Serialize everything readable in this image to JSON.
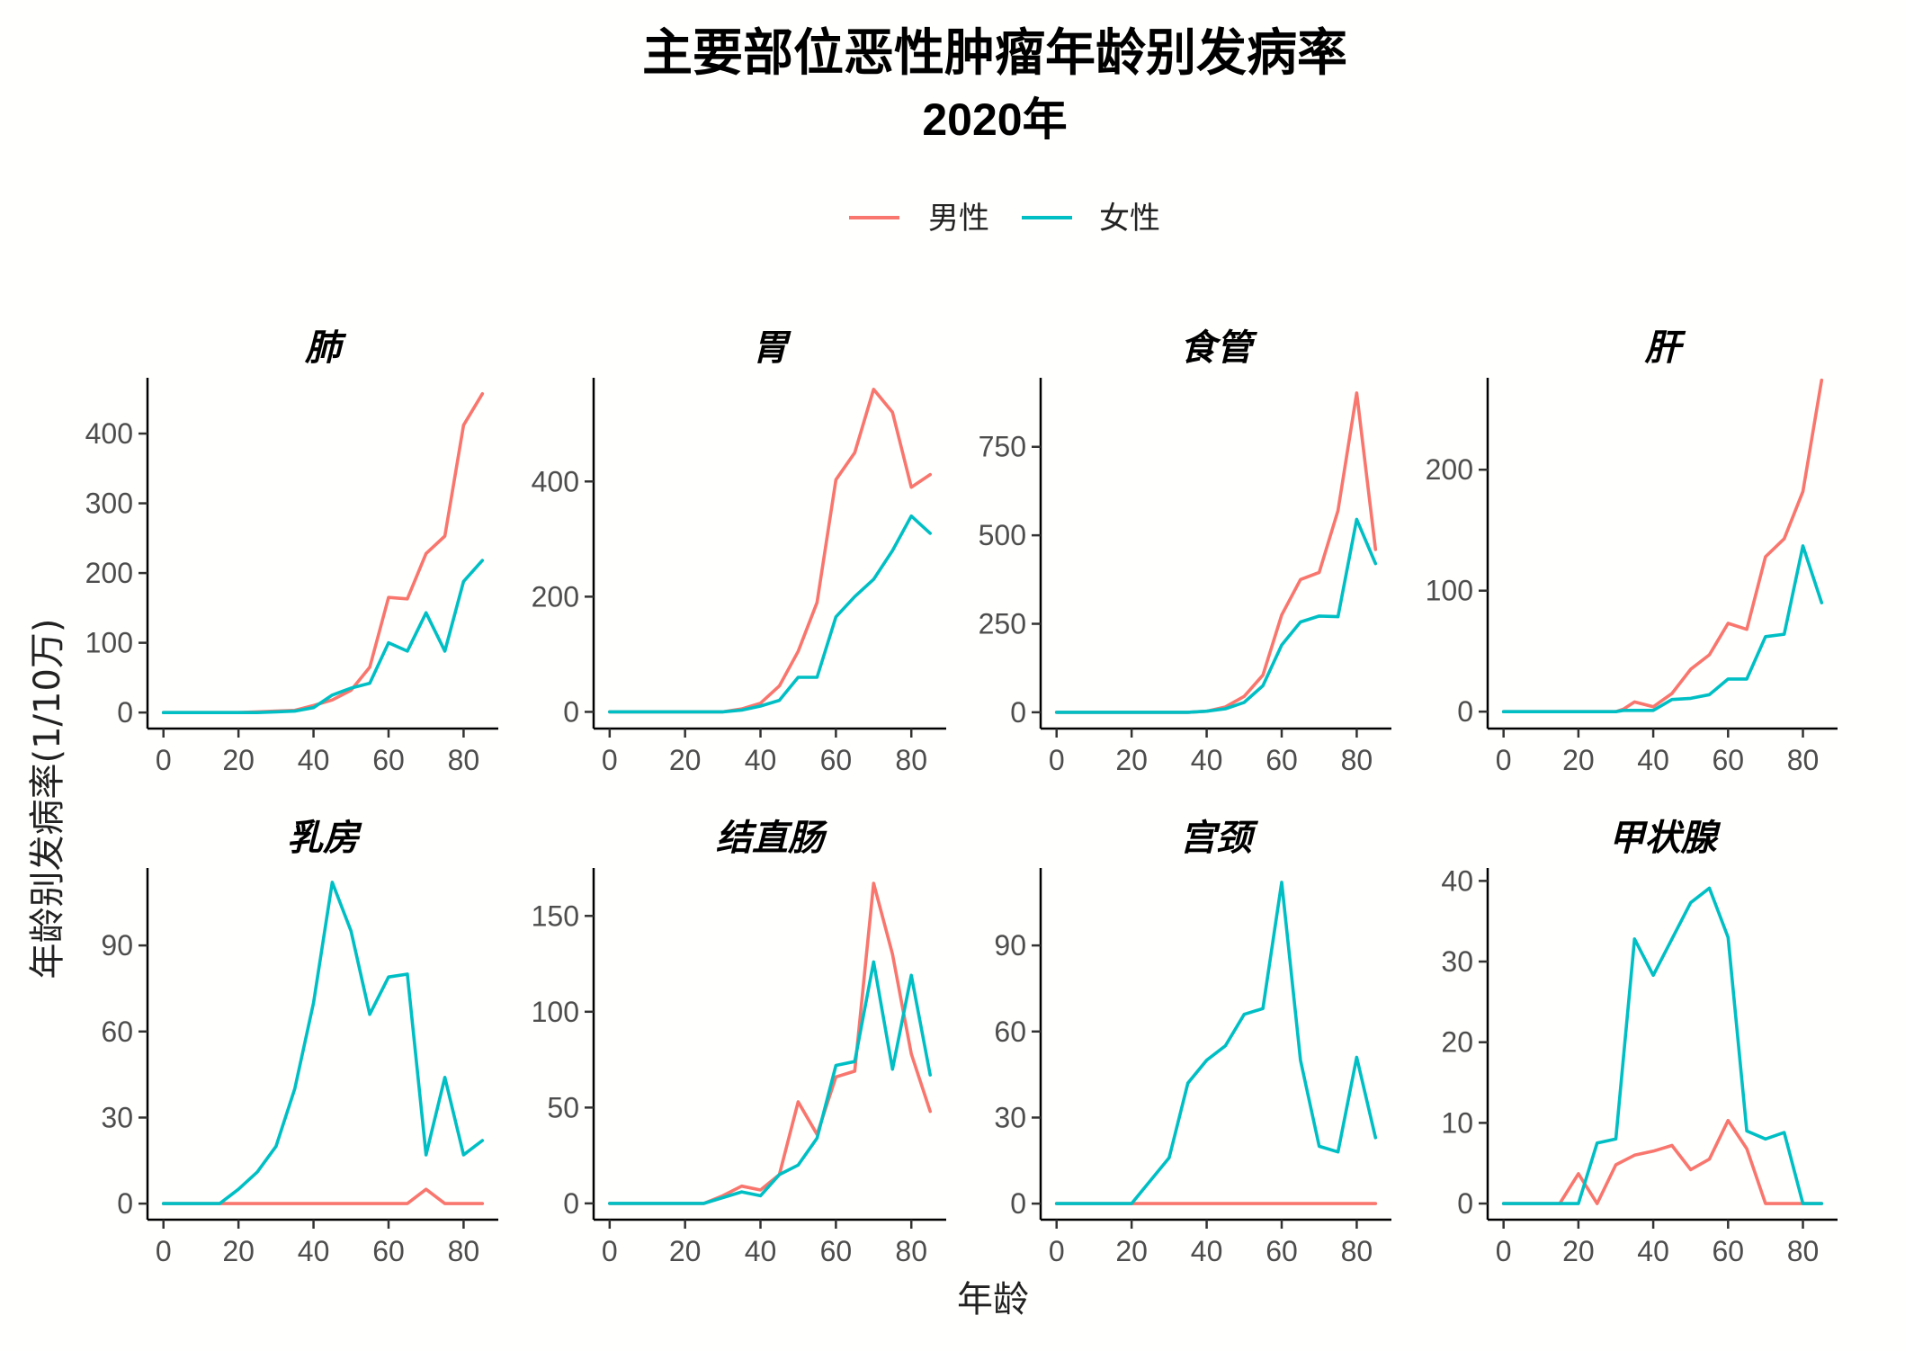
{
  "chart_data": {
    "type": "line",
    "title": "主要部位恶性肿瘤年龄别发病率",
    "subtitle": "2020年",
    "xlabel": "年龄",
    "ylabel": "年龄别发病率(1/10万)",
    "legend": {
      "position": "top",
      "items": [
        {
          "name": "男性",
          "color": "#F8766D"
        },
        {
          "name": "女性",
          "color": "#00BFC4"
        }
      ]
    },
    "grid": false,
    "x": [
      0,
      1,
      5,
      10,
      15,
      20,
      25,
      30,
      35,
      40,
      45,
      50,
      55,
      60,
      65,
      70,
      75,
      80,
      85
    ],
    "x_ticks": [
      0,
      20,
      40,
      60,
      80
    ],
    "xlim": [
      -4.25,
      89.25
    ],
    "panels": [
      {
        "name": "肺",
        "ylim": [
          -23,
          480
        ],
        "y_ticks": [
          0,
          100,
          200,
          300,
          400
        ],
        "tick_labels": [
          "0",
          "100",
          "200",
          "300",
          "400"
        ],
        "series": [
          {
            "name": "男性",
            "values": [
              0,
              0,
              0,
              0,
              0,
              0,
              1,
              2,
              3,
              10,
              18,
              32,
              65,
              165,
              163,
              228,
              253,
              412,
              457
            ]
          },
          {
            "name": "女性",
            "values": [
              0,
              0,
              0,
              0,
              0,
              0,
              0,
              1,
              2,
              7,
              25,
              35,
              42,
              100,
              88,
              143,
              88,
              188,
              218
            ]
          }
        ]
      },
      {
        "name": "胃",
        "ylim": [
          -29,
          580
        ],
        "y_ticks": [
          0,
          200,
          400
        ],
        "tick_labels": [
          "0",
          "200",
          "400"
        ],
        "series": [
          {
            "name": "男性",
            "values": [
              0,
              0,
              0,
              0,
              0,
              0,
              0,
              0,
              5,
              15,
              45,
              105,
              190,
              403,
              450,
              560,
              520,
              390,
              412
            ]
          },
          {
            "name": "女性",
            "values": [
              0,
              0,
              0,
              0,
              0,
              0,
              0,
              0,
              3,
              10,
              20,
              60,
              60,
              165,
              200,
              230,
              280,
              340,
              310
            ]
          }
        ]
      },
      {
        "name": "食管",
        "ylim": [
          -46,
          945
        ],
        "y_ticks": [
          0,
          250,
          500,
          750
        ],
        "tick_labels": [
          "0",
          "250",
          "500",
          "750"
        ],
        "series": [
          {
            "name": "男性",
            "values": [
              0,
              0,
              0,
              0,
              0,
              0,
              0,
              0,
              0,
              3,
              15,
              45,
              105,
              275,
              375,
              395,
              570,
              902,
              460
            ]
          },
          {
            "name": "女性",
            "values": [
              0,
              0,
              0,
              0,
              0,
              0,
              0,
              0,
              0,
              3,
              10,
              28,
              75,
              190,
              255,
              272,
              270,
              545,
              420
            ]
          }
        ]
      },
      {
        "name": "肝",
        "ylim": [
          -14,
          276
        ],
        "y_ticks": [
          0,
          100,
          200
        ],
        "tick_labels": [
          "0",
          "100",
          "200"
        ],
        "series": [
          {
            "name": "男性",
            "values": [
              0,
              0,
              0,
              0,
              0,
              0,
              0,
              0,
              2,
              8,
              4,
              15,
              35,
              47,
              73,
              68,
              128,
              143,
              182,
              274
            ]
          },
          {
            "name": "女性",
            "values": [
              0,
              0,
              0,
              0,
              0,
              0,
              0,
              0,
              1,
              1,
              1,
              10,
              11,
              14,
              27,
              27,
              62,
              64,
              137,
              90
            ]
          }
        ],
        "x_override": [
          0,
          1,
          5,
          10,
          15,
          20,
          25,
          30,
          32,
          35,
          40,
          45,
          50,
          55,
          60,
          65,
          70,
          75,
          80,
          85
        ]
      },
      {
        "name": "乳房",
        "ylim": [
          -5.6,
          117
        ],
        "y_ticks": [
          0,
          30,
          60,
          90
        ],
        "tick_labels": [
          "0",
          "30",
          "60",
          "90"
        ],
        "series": [
          {
            "name": "男性",
            "values": [
              0,
              0,
              0,
              0,
              0,
              0,
              0,
              0,
              0,
              0,
              0,
              0,
              0,
              0,
              0,
              5,
              0,
              0,
              0
            ]
          },
          {
            "name": "女性",
            "values": [
              0,
              0,
              0,
              0,
              0,
              5,
              11,
              20,
              40,
              70,
              112,
              95,
              66,
              79,
              80,
              17,
              44,
              17,
              22
            ]
          }
        ]
      },
      {
        "name": "结直肠",
        "ylim": [
          -8.5,
          175
        ],
        "y_ticks": [
          0,
          50,
          100,
          150
        ],
        "tick_labels": [
          "0",
          "50",
          "100",
          "150"
        ],
        "series": [
          {
            "name": "男性",
            "values": [
              0,
              0,
              0,
              0,
              0,
              0,
              0,
              4,
              9,
              7,
              15,
              53,
              36,
              66,
              69,
              167,
              130,
              78,
              48
            ]
          },
          {
            "name": "女性",
            "values": [
              0,
              0,
              0,
              0,
              0,
              0,
              0,
              3,
              6,
              4,
              15,
              20,
              34,
              72,
              74,
              126,
              70,
              119,
              67
            ]
          }
        ]
      },
      {
        "name": "宫颈",
        "ylim": [
          -5.6,
          117
        ],
        "y_ticks": [
          0,
          30,
          60,
          90
        ],
        "tick_labels": [
          "0",
          "30",
          "60",
          "90"
        ],
        "series": [
          {
            "name": "男性",
            "values": [
              0,
              0,
              0,
              0,
              0,
              0,
              0,
              0,
              0,
              0,
              0,
              0,
              0,
              0,
              0,
              0,
              0,
              0,
              0
            ]
          },
          {
            "name": "女性",
            "values": [
              0,
              0,
              0,
              0,
              0,
              0,
              8,
              16,
              42,
              50,
              55,
              66,
              68,
              112,
              50,
              20,
              18,
              51,
              23
            ]
          }
        ]
      },
      {
        "name": "甲状腺",
        "ylim": [
          -2,
          41.6
        ],
        "y_ticks": [
          0,
          10,
          20,
          30,
          40
        ],
        "tick_labels": [
          "0",
          "10",
          "20",
          "30",
          "40"
        ],
        "series": [
          {
            "name": "男性",
            "values": [
              0,
              0,
              0,
              0,
              0,
              3.7,
              0,
              4.8,
              6,
              6.5,
              7.2,
              4.2,
              5.5,
              10.3,
              6.8,
              0,
              0,
              0,
              0
            ]
          },
          {
            "name": "女性",
            "values": [
              0,
              0,
              0,
              0,
              0,
              0,
              7.5,
              8,
              32.8,
              28.3,
              32.8,
              37.3,
              39.1,
              33,
              9,
              8,
              8.8,
              0,
              0
            ]
          }
        ]
      }
    ]
  }
}
